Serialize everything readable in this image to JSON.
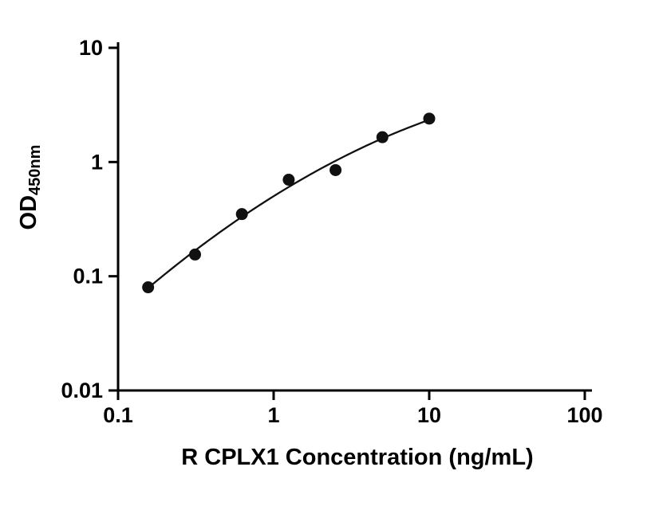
{
  "chart_data": {
    "type": "scatter",
    "title": "",
    "xlabel": "R CPLX1 Concentration (ng/mL)",
    "ylabel_main": "OD",
    "ylabel_sub": "450nm",
    "x": [
      0.156,
      0.3125,
      0.625,
      1.25,
      2.5,
      5,
      10
    ],
    "y": [
      0.08,
      0.155,
      0.35,
      0.7,
      0.85,
      1.65,
      2.4
    ],
    "fit_type": "smooth standard-curve fit (quadratic in log-log space)",
    "x_scale": "log",
    "y_scale": "log",
    "xlim": [
      0.1,
      100
    ],
    "ylim": [
      0.01,
      10
    ],
    "x_ticks": [
      0.1,
      1,
      10,
      100
    ],
    "x_tick_labels": [
      "0.1",
      "1",
      "10",
      "100"
    ],
    "y_ticks": [
      0.01,
      0.1,
      1,
      10
    ],
    "y_tick_labels": [
      "0.01",
      "0.1",
      "1",
      "10"
    ],
    "grid": false,
    "legend": "none",
    "marker_color": "#111111",
    "line_color": "#111111",
    "axis_color": "#000000",
    "background_color": "#ffffff"
  }
}
